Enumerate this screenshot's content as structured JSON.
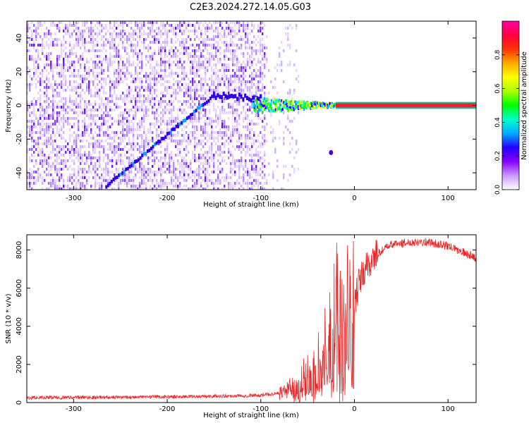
{
  "figure_title": "C2E3.2024.272.14.05.G03",
  "chart_data": [
    {
      "type": "heatmap",
      "panel": "spectrogram",
      "xlabel": "Height of straight line (km)",
      "ylabel": "Frequency (Hz)",
      "xlim": [
        -350,
        130
      ],
      "ylim": [
        -50,
        50
      ],
      "xticks": [
        -300,
        -200,
        -100,
        0,
        100
      ],
      "yticks": [
        -40,
        -20,
        0,
        20,
        40
      ],
      "grid": false,
      "colorbar": {
        "label": "Normalized spectral amplitude",
        "range": [
          0,
          1
        ],
        "ticks": [
          "0.0",
          "0.2",
          "0.4",
          "0.6",
          "0.8"
        ],
        "colormap": [
          "#ffffff",
          "#cc99ff",
          "#8800ff",
          "#2200ff",
          "#00aaff",
          "#00ffcc",
          "#00ff00",
          "#aaff00",
          "#ffff00",
          "#ffaa00",
          "#ff3300",
          "#ff0044",
          "#ff00aa"
        ]
      },
      "features": {
        "noise_region_x": [
          -350,
          -95
        ],
        "sparse_noise_region_x": [
          -95,
          -60
        ],
        "diagonal_trace": {
          "x": [
            -265,
            -150
          ],
          "y": [
            -48,
            6
          ]
        },
        "converging_trace": {
          "x": [
            -150,
            -100
          ],
          "y": [
            6,
            4
          ]
        },
        "main_signal": {
          "x": [
            -108,
            130
          ],
          "y": 0
        },
        "outlier_blob": {
          "x": -25,
          "y": -28
        }
      }
    },
    {
      "type": "line",
      "panel": "snr",
      "xlabel": "Height of straight line (km)",
      "ylabel": "SNR (10 * v/v)",
      "xlim": [
        -350,
        130
      ],
      "ylim": [
        0,
        8800
      ],
      "xticks": [
        -300,
        -200,
        -100,
        0,
        100
      ],
      "yticks": [
        0,
        2000,
        4000,
        6000,
        8000
      ],
      "grid": false,
      "series": [
        {
          "color": "#ee2222",
          "x": [
            -350,
            -300,
            -250,
            -200,
            -150,
            -100,
            -80,
            -70,
            -60,
            -50,
            -45,
            -40,
            -35,
            -30,
            -25,
            -20,
            -15,
            -10,
            -5,
            0,
            5,
            10,
            15,
            20,
            30,
            40,
            50,
            60,
            70,
            80,
            90,
            100,
            110,
            120,
            130
          ],
          "y": [
            250,
            270,
            280,
            300,
            330,
            380,
            500,
            700,
            1000,
            1600,
            1200,
            2500,
            2000,
            5000,
            3000,
            5500,
            4000,
            5200,
            4500,
            5200,
            6200,
            6800,
            7200,
            7600,
            8000,
            8300,
            8350,
            8400,
            8450,
            8400,
            8300,
            8200,
            8000,
            7800,
            7600
          ]
        }
      ]
    }
  ]
}
